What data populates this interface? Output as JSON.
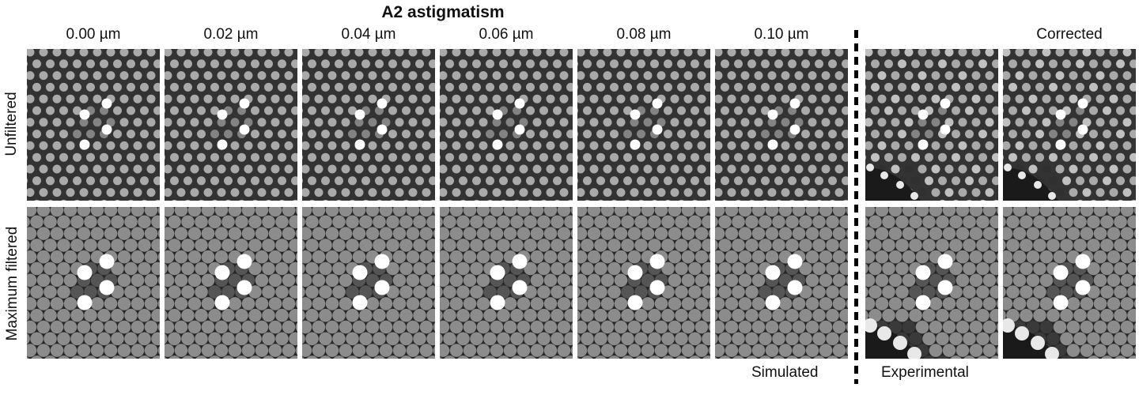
{
  "figure": {
    "title": "A2 astigmatism",
    "columns": [
      "0.00 µm",
      "0.02 µm",
      "0.04 µm",
      "0.06 µm",
      "0.08 µm",
      "0.10 µm",
      "",
      "Corrected"
    ],
    "rows": [
      "Unfiltered",
      "Maximum filtered"
    ],
    "group_labels": {
      "simulated": "Simulated",
      "experimental": "Experimental"
    },
    "colors": {
      "background": "#ffffff",
      "lattice_dark": "#2a2a2a",
      "atom": "#a8a8a8",
      "bright_atom": "#ffffff",
      "divider": "#000000"
    }
  }
}
